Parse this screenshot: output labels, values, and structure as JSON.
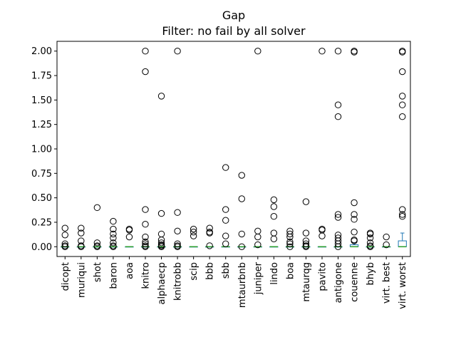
{
  "chart_data": {
    "type": "box",
    "title": "Gap",
    "subtitle": "Filter: no fail by all solver",
    "xlabel": "",
    "ylabel": "",
    "ylim": [
      -0.1,
      2.1
    ],
    "yticks": [
      "0.00",
      "0.25",
      "0.50",
      "0.75",
      "1.00",
      "1.25",
      "1.50",
      "1.75",
      "2.00"
    ],
    "grid": false,
    "colors": {
      "box": "#1f77b4",
      "median": "#2ca02c",
      "flier": "#000000"
    },
    "categories": [
      "dicopt",
      "muriqui",
      "shot",
      "baron",
      "aoa",
      "knitro",
      "alphaecp",
      "knitrobb",
      "scip",
      "bbb",
      "sbb",
      "mtaurbnb",
      "juniper",
      "lindo",
      "boa",
      "mtaurqg",
      "pavito",
      "antigone",
      "couenne",
      "bhyb",
      "virt. best",
      "virt. worst"
    ],
    "series": [
      {
        "category": "dicopt",
        "q1": 0,
        "median": 0,
        "q3": 0,
        "whisker_low": 0,
        "whisker_high": 0,
        "outliers": [
          0.19,
          0.12,
          0.03,
          0.01,
          0.0
        ]
      },
      {
        "category": "muriqui",
        "q1": 0,
        "median": 0,
        "q3": 0,
        "whisker_low": 0,
        "whisker_high": 0,
        "outliers": [
          0.19,
          0.14,
          0.06,
          0.01,
          0.0
        ]
      },
      {
        "category": "shot",
        "q1": 0,
        "median": 0,
        "q3": 0,
        "whisker_low": 0,
        "whisker_high": 0,
        "outliers": [
          0.4,
          0.04,
          0.01,
          0.0
        ]
      },
      {
        "category": "baron",
        "q1": 0,
        "median": 0,
        "q3": 0,
        "whisker_low": 0,
        "whisker_high": 0,
        "outliers": [
          0.26,
          0.18,
          0.13,
          0.09,
          0.04,
          0.01,
          0.0
        ]
      },
      {
        "category": "aoa",
        "q1": 0,
        "median": 0,
        "q3": 0,
        "whisker_low": 0,
        "whisker_high": 0,
        "outliers": [
          0.18,
          0.17,
          0.1
        ]
      },
      {
        "category": "knitro",
        "q1": 0,
        "median": 0,
        "q3": 0,
        "whisker_low": 0,
        "whisker_high": 0,
        "outliers": [
          2.0,
          1.79,
          0.38,
          0.23,
          0.1,
          0.05,
          0.03,
          0.01,
          0.0
        ]
      },
      {
        "category": "alphaecp",
        "q1": 0,
        "median": 0,
        "q3": 0,
        "whisker_low": 0,
        "whisker_high": 0,
        "outliers": [
          1.54,
          0.34,
          0.13,
          0.07,
          0.04,
          0.02,
          0.01,
          0.0
        ]
      },
      {
        "category": "knitrobb",
        "q1": 0,
        "median": 0,
        "q3": 0,
        "whisker_low": 0,
        "whisker_high": 0,
        "outliers": [
          2.0,
          0.35,
          0.16,
          0.03,
          0.01,
          0.0
        ]
      },
      {
        "category": "scip",
        "q1": 0,
        "median": 0,
        "q3": 0,
        "whisker_low": 0,
        "whisker_high": 0,
        "outliers": [
          0.18,
          0.15,
          0.11
        ]
      },
      {
        "category": "bbb",
        "q1": 0,
        "median": 0,
        "q3": 0,
        "whisker_low": 0,
        "whisker_high": 0,
        "outliers": [
          0.19,
          0.15,
          0.14,
          0.01
        ]
      },
      {
        "category": "sbb",
        "q1": 0,
        "median": 0,
        "q3": 0,
        "whisker_low": 0,
        "whisker_high": 0,
        "outliers": [
          0.81,
          0.38,
          0.27,
          0.11,
          0.03
        ]
      },
      {
        "category": "mtaurbnb",
        "q1": 0,
        "median": 0,
        "q3": 0,
        "whisker_low": 0,
        "whisker_high": 0,
        "outliers": [
          0.73,
          0.49,
          0.13,
          0.0
        ]
      },
      {
        "category": "juniper",
        "q1": 0,
        "median": 0,
        "q3": 0,
        "whisker_low": 0,
        "whisker_high": 0,
        "outliers": [
          2.0,
          0.16,
          0.1,
          0.02
        ]
      },
      {
        "category": "lindo",
        "q1": 0,
        "median": 0,
        "q3": 0,
        "whisker_low": 0,
        "whisker_high": 0,
        "outliers": [
          0.48,
          0.41,
          0.31,
          0.14,
          0.08
        ]
      },
      {
        "category": "boa",
        "q1": 0,
        "median": 0,
        "q3": 0,
        "whisker_low": 0,
        "whisker_high": 0,
        "outliers": [
          0.16,
          0.13,
          0.1,
          0.05,
          0.03,
          0.0
        ]
      },
      {
        "category": "mtaurqg",
        "q1": 0,
        "median": 0,
        "q3": 0,
        "whisker_low": 0,
        "whisker_high": 0,
        "outliers": [
          0.46,
          0.14,
          0.06,
          0.03,
          0.01,
          0.0
        ]
      },
      {
        "category": "pavito",
        "q1": 0,
        "median": 0,
        "q3": 0,
        "whisker_low": 0,
        "whisker_high": 0,
        "outliers": [
          2.0,
          0.18,
          0.17,
          0.11
        ]
      },
      {
        "category": "antigone",
        "q1": 0,
        "median": 0,
        "q3": 0,
        "whisker_low": 0,
        "whisker_high": 0,
        "outliers": [
          2.0,
          1.45,
          1.33,
          0.33,
          0.3,
          0.12,
          0.09,
          0.06,
          0.03,
          0.0
        ]
      },
      {
        "category": "couenne",
        "q1": 0,
        "median": 0,
        "q3": 0.02,
        "whisker_low": 0,
        "whisker_high": 0.04,
        "outliers": [
          2.0,
          1.99,
          0.45,
          0.33,
          0.28,
          0.15,
          0.07,
          0.06
        ]
      },
      {
        "category": "bhyb",
        "q1": 0,
        "median": 0,
        "q3": 0,
        "whisker_low": 0,
        "whisker_high": 0,
        "outliers": [
          0.14,
          0.13,
          0.09,
          0.04,
          0.01,
          0.0
        ]
      },
      {
        "category": "virt. best",
        "q1": 0,
        "median": 0,
        "q3": 0,
        "whisker_low": 0,
        "whisker_high": 0,
        "outliers": [
          0.1,
          0.02
        ]
      },
      {
        "category": "virt. worst",
        "q1": 0,
        "median": 0,
        "q3": 0.06,
        "whisker_low": 0,
        "whisker_high": 0.14,
        "outliers": [
          2.0,
          1.99,
          1.79,
          1.54,
          1.45,
          1.33,
          0.38,
          0.33,
          0.31
        ]
      }
    ]
  }
}
